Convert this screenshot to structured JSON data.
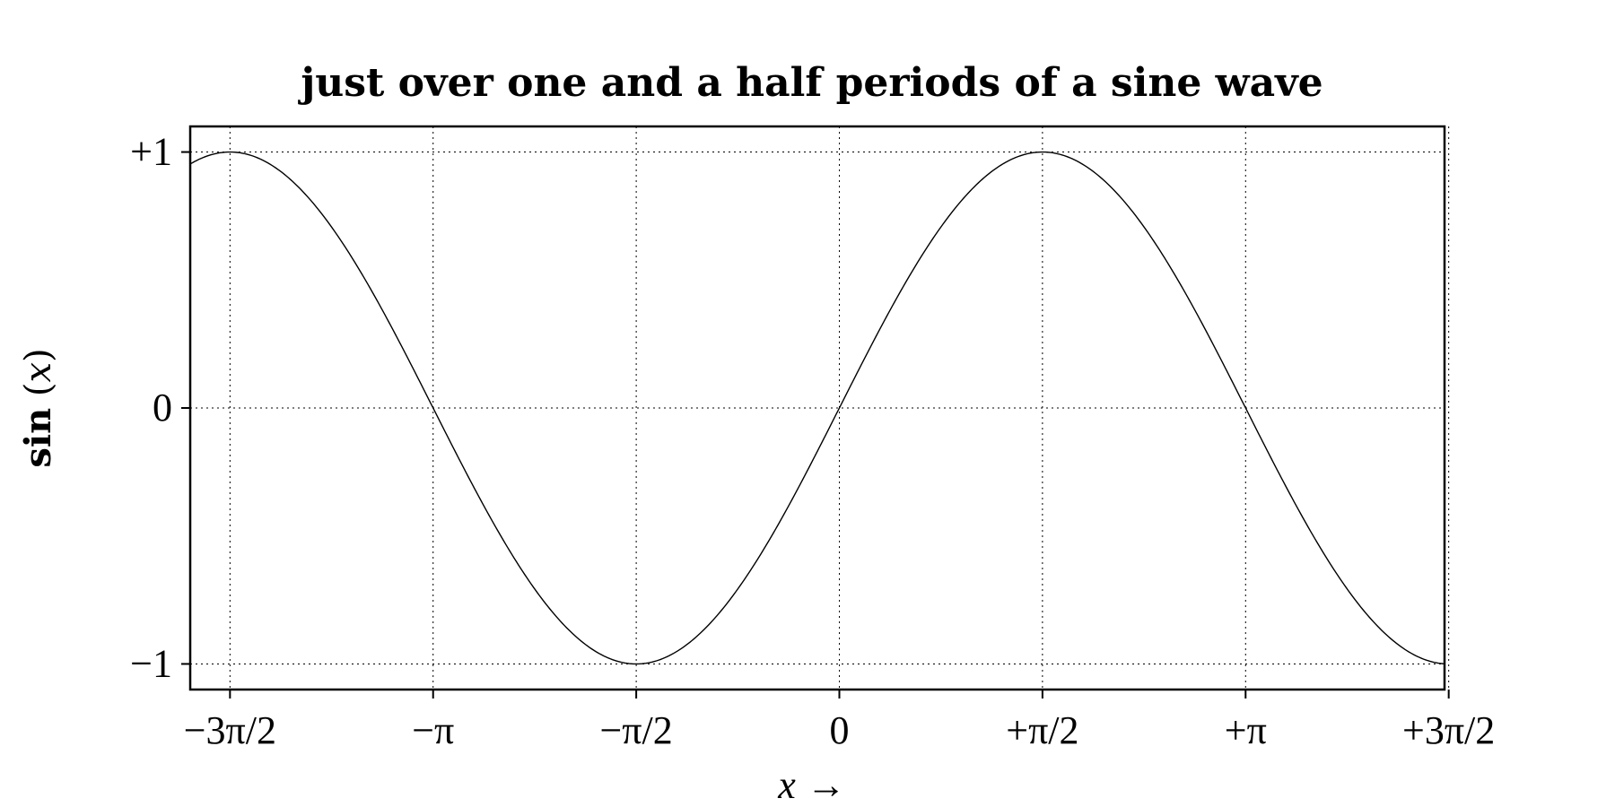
{
  "chart_data": {
    "type": "line",
    "title": "just over one and a half periods of a sine wave",
    "xlabel": "x →",
    "xlabel_var": "x",
    "xlabel_arrow": "→",
    "ylabel": "sin (x)",
    "ylabel_func": "sin",
    "ylabel_var": "x",
    "function": "sin",
    "xlim": [
      -5.02,
      4.68
    ],
    "ylim": [
      -1.1,
      1.1
    ],
    "grid": true,
    "x_ticks": [
      {
        "value": -4.712389,
        "label": "−3π/2"
      },
      {
        "value": -3.141593,
        "label": "−π"
      },
      {
        "value": -1.570796,
        "label": "−π/2"
      },
      {
        "value": 0,
        "label": "0"
      },
      {
        "value": 1.570796,
        "label": "+π/2"
      },
      {
        "value": 3.141593,
        "label": "+π"
      },
      {
        "value": 4.712389,
        "label": "+3π/2"
      }
    ],
    "y_ticks": [
      {
        "value": 1,
        "label": "+1"
      },
      {
        "value": 0,
        "label": "0"
      },
      {
        "value": -1,
        "label": "−1"
      }
    ],
    "series": [
      {
        "x": [
          -5.02,
          -4.712389,
          -4.2,
          -3.6,
          -3.141593,
          -2.6,
          -2.0,
          -1.570796,
          -1.0,
          -0.5,
          0,
          0.5,
          1.0,
          1.570796,
          2.0,
          2.6,
          3.141593,
          3.6,
          4.2,
          4.68
        ],
        "y": [
          0.95,
          1.0,
          0.87,
          0.44,
          0.0,
          -0.52,
          -0.91,
          -1.0,
          -0.84,
          -0.48,
          0.0,
          0.48,
          0.84,
          1.0,
          0.91,
          0.52,
          0.0,
          -0.44,
          -0.87,
          -1.0
        ]
      }
    ]
  }
}
